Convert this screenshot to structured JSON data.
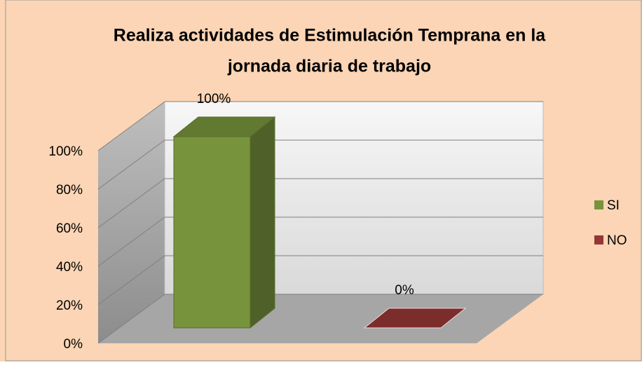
{
  "chart_data": {
    "type": "bar3d",
    "title": "Realiza  actividades de Estimulación  Temprana  en la",
    "subtitle": "jornada diaria de trabajo",
    "categories": [
      null
    ],
    "series": [
      {
        "name": "SI",
        "color": "#77933c",
        "values": [
          100
        ],
        "value_labels": [
          "100%"
        ]
      },
      {
        "name": "NO",
        "color": "#953735",
        "values": [
          0
        ],
        "value_labels": [
          "0%"
        ]
      }
    ],
    "ylim": [
      0,
      100
    ],
    "yticks": [
      {
        "value": 0,
        "label": "0%"
      },
      {
        "value": 20,
        "label": "20%"
      },
      {
        "value": 40,
        "label": "40%"
      },
      {
        "value": 60,
        "label": "60%"
      },
      {
        "value": 80,
        "label": "80%"
      },
      {
        "value": 100,
        "label": "100%"
      }
    ],
    "grid": true,
    "legend": "right"
  }
}
